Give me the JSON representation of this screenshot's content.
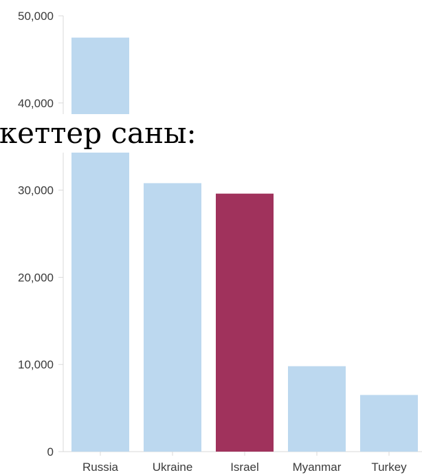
{
  "chart_data": {
    "type": "bar",
    "categories": [
      "Russia",
      "Ukraine",
      "Israel",
      "Myanmar",
      "Turkey"
    ],
    "values": [
      47500,
      30800,
      29600,
      9800,
      6500
    ],
    "highlight": "Israel",
    "colors": {
      "default": "#bcd8ef",
      "highlight": "#a0325c",
      "axis": "#d9d9d9",
      "text": "#3a3a3a"
    },
    "ylim": [
      0,
      50000
    ],
    "yticks": [
      0,
      10000,
      20000,
      30000,
      40000,
      50000
    ],
    "ytick_labels": [
      "0",
      "10,000",
      "20,000",
      "30,000",
      "40,000",
      "50,000"
    ],
    "xlabel": "",
    "ylabel": "",
    "title": "",
    "grid": false,
    "legend": "none"
  },
  "overlay_text": "екеттер саны:"
}
